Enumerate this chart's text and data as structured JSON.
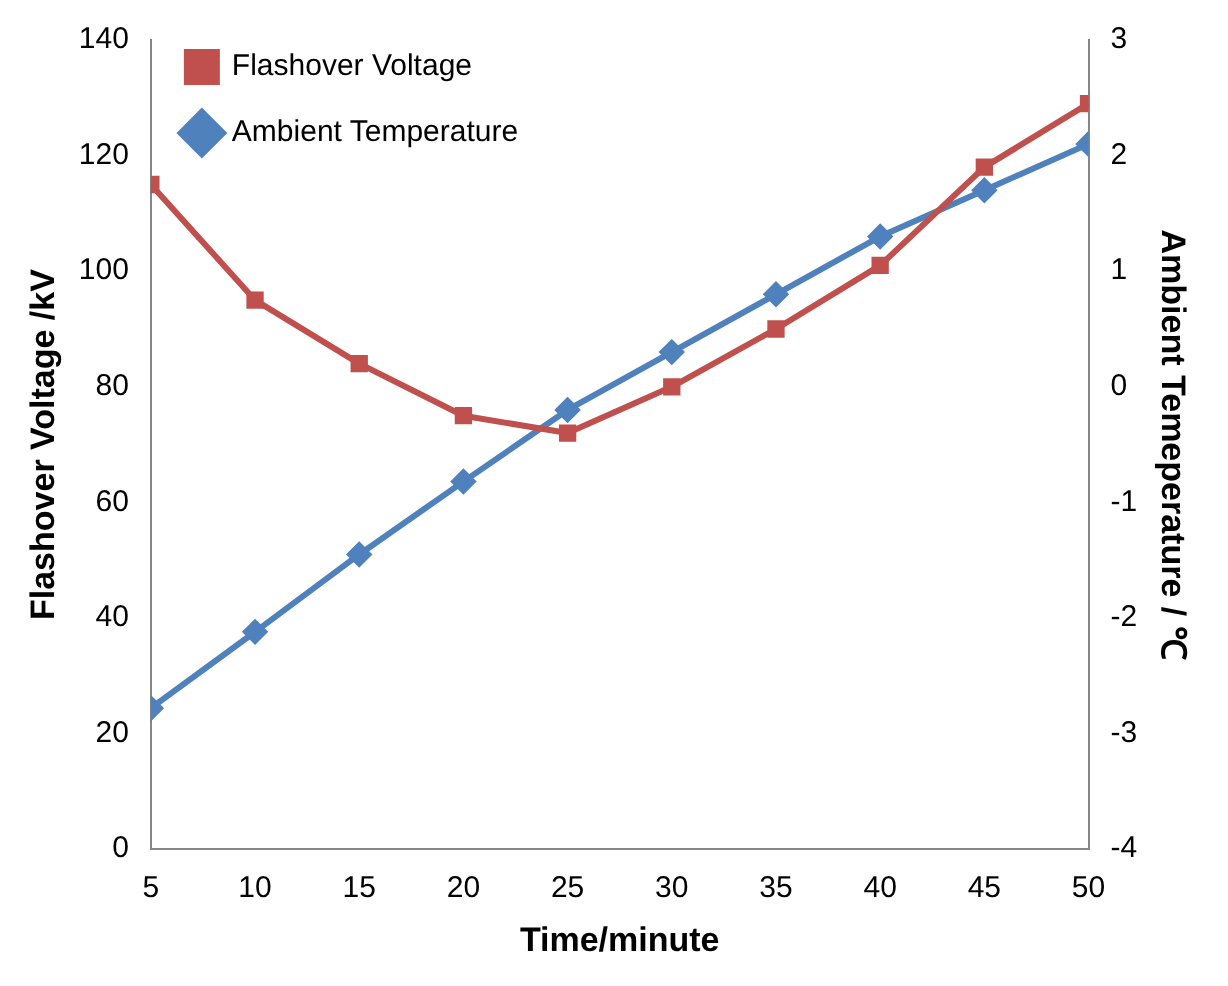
{
  "chart_data": {
    "type": "line",
    "xlabel": "Time/minute",
    "ylabel": "Flashover Voltage /kV",
    "y2label": "Ambient Temeperature / ℃",
    "x": [
      5,
      10,
      15,
      20,
      25,
      30,
      35,
      40,
      45,
      50
    ],
    "xlim": [
      5,
      50
    ],
    "xticks": [
      5,
      10,
      15,
      20,
      25,
      30,
      35,
      40,
      45,
      50
    ],
    "ylim": [
      0,
      140
    ],
    "yticks": [
      0,
      20,
      40,
      60,
      80,
      100,
      120,
      140
    ],
    "y2lim": [
      -4,
      3
    ],
    "y2ticks": [
      -4,
      -3,
      -2,
      -1,
      0,
      1,
      2,
      3
    ],
    "grid": false,
    "legend": "top left",
    "series": [
      {
        "name": "Flashover Voltage",
        "color": "#c0504d",
        "marker": "square",
        "values": [
          115,
          95,
          84,
          75,
          72,
          80,
          90,
          101,
          118,
          129
        ]
      },
      {
        "name": "Ambient Temperature",
        "color": "#4f81bd",
        "marker": "diamond",
        "axis": "y2",
        "values": [
          -2.78,
          -2.12,
          -1.45,
          -0.82,
          -0.2,
          0.3,
          0.8,
          1.3,
          1.7,
          2.1
        ]
      }
    ]
  }
}
